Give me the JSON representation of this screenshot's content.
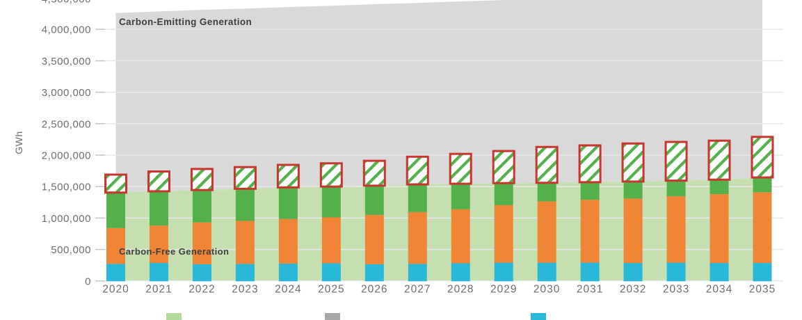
{
  "chart_data": {
    "type": "bar",
    "subtype": "stacked-bars-over-stacked-area-background",
    "title": "",
    "xlabel": "",
    "ylabel": "GWh",
    "ylim": [
      0,
      4500000
    ],
    "grid": "horizontal",
    "legend_position": "bottom (labels cropped by image edge)",
    "x_categories": [
      "2020",
      "2021",
      "2022",
      "2023",
      "2024",
      "2025",
      "2026",
      "2027",
      "2028",
      "2029",
      "2030",
      "2031",
      "2032",
      "2033",
      "2034",
      "2035"
    ],
    "y_ticks": [
      0,
      500000,
      1000000,
      1500000,
      2000000,
      2500000,
      3000000,
      3500000,
      4000000,
      4500000
    ],
    "y_tick_labels": [
      "0",
      "500,000",
      "1,000,000",
      "1,500,000",
      "2,000,000",
      "2,500,000",
      "3,000,000",
      "3,500,000",
      "4,000,000",
      "4,500,000"
    ],
    "bar_stack_tops_gwh": {
      "cyan_segment": [
        270000,
        285000,
        265000,
        270000,
        275000,
        280000,
        265000,
        270000,
        280000,
        290000,
        290000,
        290000,
        285000,
        290000,
        285000,
        285000
      ],
      "orange_segment": [
        840000,
        880000,
        930000,
        955000,
        985000,
        1010000,
        1050000,
        1095000,
        1140000,
        1205000,
        1265000,
        1290000,
        1310000,
        1345000,
        1380000,
        1410000
      ],
      "green_segment_carbon_free_total": [
        1405000,
        1425000,
        1445000,
        1465000,
        1487000,
        1500000,
        1515000,
        1535000,
        1545000,
        1555000,
        1560000,
        1570000,
        1580000,
        1595000,
        1610000,
        1645000
      ],
      "hatched_segment": [
        1690000,
        1740000,
        1780000,
        1810000,
        1845000,
        1870000,
        1910000,
        1975000,
        2020000,
        2065000,
        2130000,
        2155000,
        2185000,
        2210000,
        2230000,
        2290000
      ]
    },
    "area_tops_gwh": {
      "carbon_free": [
        1405000,
        1425000,
        1445000,
        1465000,
        1487000,
        1500000,
        1515000,
        1535000,
        1545000,
        1555000,
        1560000,
        1570000,
        1580000,
        1595000,
        1610000,
        1645000
      ],
      "carbon_emitting": [
        4260000,
        4285000,
        4310000,
        4330000,
        4355000,
        4375000,
        4400000,
        4420000,
        4445000,
        4465000,
        4490000,
        4510000,
        4535000,
        4555000,
        4580000,
        4600000
      ],
      "carbon_emitting_clipped_above_top_axis": true
    }
  },
  "annotations": {
    "carbon_emitting": "Carbon-Emitting Generation",
    "carbon_free": "Carbon-Free Generation"
  },
  "legend": {
    "labels_cropped": true,
    "items": [
      {
        "name": "carbon-free",
        "swatch_color": "#b4d99c",
        "label": ""
      },
      {
        "name": "carbon-emitting",
        "swatch_color": "#a8a8a8",
        "label": ""
      },
      {
        "name": "cyan-series",
        "swatch_color": "#2ab8d9",
        "label": ""
      }
    ]
  },
  "colors": {
    "carbon_free_area": "#c5dfb1",
    "carbon_emitting_area": "#d9d9d9",
    "bar_cyan": "#2ab8d9",
    "bar_orange": "#f08536",
    "bar_green": "#53b04b",
    "hatch_fill": "#ffffff",
    "hatch_stripe": "#53b04b",
    "hatch_border": "#c8362f",
    "gridline": "#e8e8e8",
    "tick": "#c6c6c6",
    "axis_text": "#6d6e71",
    "annotation_text": "#3e3f42"
  }
}
